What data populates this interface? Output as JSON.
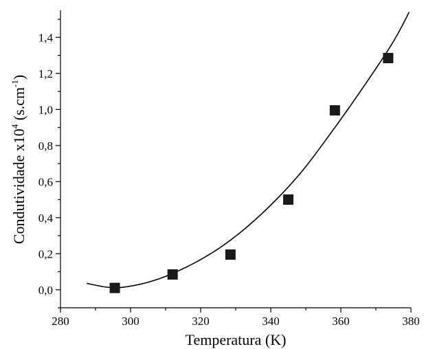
{
  "chart_data": {
    "type": "scatter",
    "xlabel": "Temperatura (K)",
    "ylabel": {
      "main": "Condutividade x10",
      "exp": "4",
      "unit_open": " (s.cm",
      "unit_exp": "-1",
      "unit_close": ")"
    },
    "xlim": [
      280,
      380
    ],
    "ylim": [
      -0.1,
      1.55
    ],
    "xticks": [
      {
        "value": 280,
        "label": "280"
      },
      {
        "value": 300,
        "label": "300"
      },
      {
        "value": 320,
        "label": "320"
      },
      {
        "value": 340,
        "label": "340"
      },
      {
        "value": 360,
        "label": "360"
      },
      {
        "value": 380,
        "label": "380"
      }
    ],
    "yticks": [
      {
        "value": 0.0,
        "label": "0,0"
      },
      {
        "value": 0.2,
        "label": "0,2"
      },
      {
        "value": 0.4,
        "label": "0,4"
      },
      {
        "value": 0.6,
        "label": "0,6"
      },
      {
        "value": 0.8,
        "label": "0,8"
      },
      {
        "value": 1.0,
        "label": "1,0"
      },
      {
        "value": 1.2,
        "label": "1,2"
      },
      {
        "value": 1.4,
        "label": "1,4"
      }
    ],
    "x_minor_step": 10,
    "y_minor_step": 0.1,
    "grid": false,
    "legend": "none",
    "series": [
      {
        "type": "scatter",
        "marker": "square",
        "color": "#1a1a1a",
        "points": [
          {
            "x": 295.5,
            "y": 0.01
          },
          {
            "x": 312,
            "y": 0.085
          },
          {
            "x": 328.5,
            "y": 0.195
          },
          {
            "x": 345,
            "y": 0.5
          },
          {
            "x": 358.3,
            "y": 0.995
          },
          {
            "x": 373.5,
            "y": 1.285
          }
        ]
      },
      {
        "type": "line",
        "fit": "quadratic",
        "color": "#000000",
        "points": [
          {
            "x": 287.5,
            "y": 0.035
          },
          {
            "x": 297.5,
            "y": 0.013
          },
          {
            "x": 312,
            "y": 0.09
          },
          {
            "x": 328.5,
            "y": 0.275
          },
          {
            "x": 345,
            "y": 0.57
          },
          {
            "x": 358.3,
            "y": 0.9
          },
          {
            "x": 373.5,
            "y": 1.33
          },
          {
            "x": 379.5,
            "y": 1.54
          }
        ]
      }
    ]
  }
}
